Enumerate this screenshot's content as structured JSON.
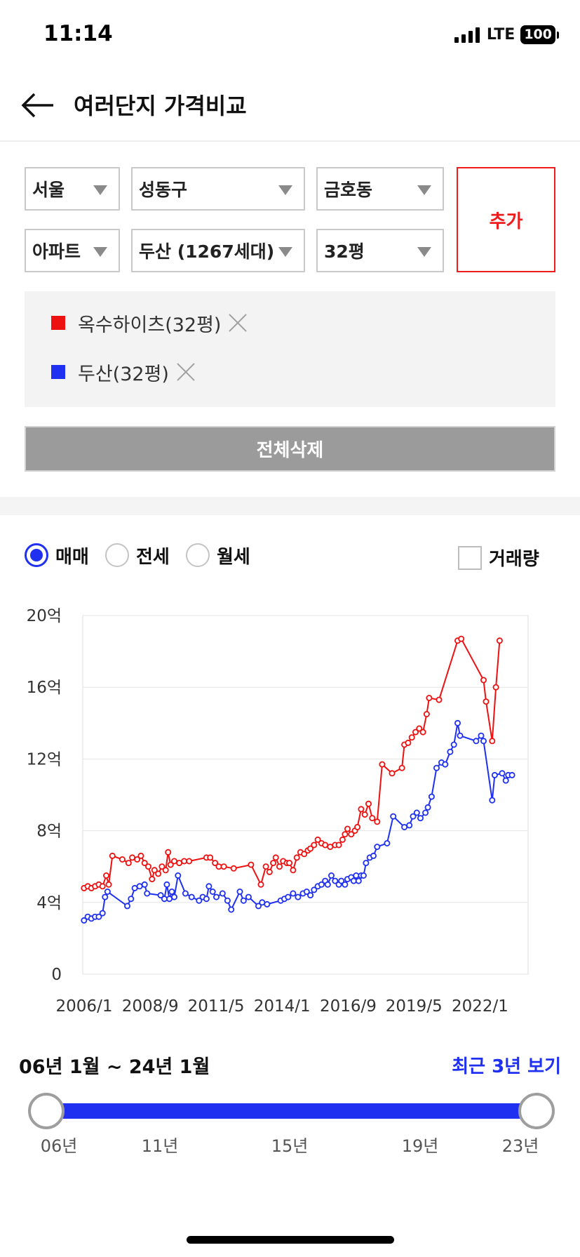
{
  "status_bar": {
    "time": "11:14",
    "network": "LTE",
    "battery": "100"
  },
  "header": {
    "title": "여러단지 가격비교",
    "back_icon": "arrow-left-icon"
  },
  "filters": {
    "city": "서울",
    "district": "성동구",
    "dong": "금호동",
    "property_type": "아파트",
    "complex": "두산 (1267세대)",
    "size": "32평",
    "add_label": "추가"
  },
  "selected": [
    {
      "label": "옥수하이츠(32평)",
      "color": "#ee1111"
    },
    {
      "label": "두산(32평)",
      "color": "#1f30f0"
    }
  ],
  "clear_all_label": "전체삭제",
  "trade_types": [
    {
      "label": "매매",
      "selected": true
    },
    {
      "label": "전세",
      "selected": false
    },
    {
      "label": "월세",
      "selected": false
    }
  ],
  "volume": {
    "label": "거래량",
    "checked": false
  },
  "chart_data": {
    "type": "line",
    "title": "",
    "xlabel": "",
    "ylabel": "",
    "ylim": [
      0,
      20
    ],
    "yticks": [
      0,
      4,
      8,
      12,
      16,
      20
    ],
    "ytick_labels": [
      "0",
      "4억",
      "8억",
      "12억",
      "16억",
      "20억"
    ],
    "xlim": [
      2006.0,
      2024.0
    ],
    "xticks": [
      2006.0,
      2008.67,
      2011.33,
      2014.0,
      2016.67,
      2019.33,
      2022.0
    ],
    "xtick_labels": [
      "2006/1",
      "2008/9",
      "2011/5",
      "2014/1",
      "2016/9",
      "2019/5",
      "2022/1"
    ],
    "grid": true,
    "series": [
      {
        "name": "옥수하이츠(32평)",
        "color": "#ee1111",
        "points": [
          [
            2006.05,
            4.8
          ],
          [
            2006.2,
            4.9
          ],
          [
            2006.35,
            4.8
          ],
          [
            2006.5,
            4.9
          ],
          [
            2006.65,
            5.0
          ],
          [
            2006.8,
            4.9
          ],
          [
            2006.95,
            5.5
          ],
          [
            2007.05,
            5.0
          ],
          [
            2007.2,
            6.6
          ],
          [
            2007.6,
            6.4
          ],
          [
            2007.85,
            6.2
          ],
          [
            2008.0,
            6.5
          ],
          [
            2008.2,
            6.4
          ],
          [
            2008.35,
            6.6
          ],
          [
            2008.5,
            6.2
          ],
          [
            2008.65,
            6.0
          ],
          [
            2008.8,
            5.3
          ],
          [
            2008.9,
            5.8
          ],
          [
            2009.05,
            5.6
          ],
          [
            2009.2,
            6.0
          ],
          [
            2009.35,
            5.8
          ],
          [
            2009.45,
            6.8
          ],
          [
            2009.55,
            6.1
          ],
          [
            2009.7,
            6.3
          ],
          [
            2009.9,
            6.2
          ],
          [
            2010.1,
            6.3
          ],
          [
            2010.3,
            6.3
          ],
          [
            2011.0,
            6.5
          ],
          [
            2011.15,
            6.5
          ],
          [
            2011.35,
            6.2
          ],
          [
            2011.5,
            6.0
          ],
          [
            2011.7,
            6.0
          ],
          [
            2012.1,
            5.9
          ],
          [
            2012.8,
            6.1
          ],
          [
            2013.2,
            5.0
          ],
          [
            2013.4,
            6.0
          ],
          [
            2013.55,
            5.7
          ],
          [
            2013.7,
            6.2
          ],
          [
            2013.8,
            6.5
          ],
          [
            2013.95,
            6.0
          ],
          [
            2014.1,
            6.3
          ],
          [
            2014.25,
            6.2
          ],
          [
            2014.35,
            6.2
          ],
          [
            2014.5,
            5.8
          ],
          [
            2014.65,
            6.5
          ],
          [
            2014.8,
            6.8
          ],
          [
            2014.95,
            6.7
          ],
          [
            2015.1,
            6.9
          ],
          [
            2015.2,
            7.0
          ],
          [
            2015.35,
            7.2
          ],
          [
            2015.5,
            7.5
          ],
          [
            2015.65,
            7.3
          ],
          [
            2015.8,
            7.2
          ],
          [
            2016.0,
            7.1
          ],
          [
            2016.2,
            7.2
          ],
          [
            2016.35,
            7.2
          ],
          [
            2016.5,
            7.5
          ],
          [
            2016.6,
            7.8
          ],
          [
            2016.7,
            8.1
          ],
          [
            2016.85,
            7.8
          ],
          [
            2017.0,
            8.0
          ],
          [
            2017.1,
            8.2
          ],
          [
            2017.25,
            9.2
          ],
          [
            2017.4,
            8.9
          ],
          [
            2017.55,
            9.5
          ],
          [
            2017.7,
            8.7
          ],
          [
            2017.9,
            8.5
          ],
          [
            2018.1,
            11.7
          ],
          [
            2018.5,
            11.2
          ],
          [
            2018.9,
            11.5
          ],
          [
            2019.0,
            12.8
          ],
          [
            2019.15,
            12.9
          ],
          [
            2019.3,
            13.2
          ],
          [
            2019.45,
            13.5
          ],
          [
            2019.6,
            13.7
          ],
          [
            2019.75,
            13.5
          ],
          [
            2019.9,
            14.5
          ],
          [
            2020.0,
            15.4
          ],
          [
            2020.4,
            15.3
          ],
          [
            2021.15,
            18.6
          ],
          [
            2021.3,
            18.7
          ],
          [
            2022.2,
            16.4
          ],
          [
            2022.3,
            15.2
          ],
          [
            2022.55,
            13.0
          ],
          [
            2022.7,
            16.0
          ],
          [
            2022.85,
            18.6
          ]
        ]
      },
      {
        "name": "두산(32평)",
        "color": "#1f30f0",
        "points": [
          [
            2006.05,
            3.0
          ],
          [
            2006.2,
            3.2
          ],
          [
            2006.35,
            3.1
          ],
          [
            2006.5,
            3.2
          ],
          [
            2006.65,
            3.2
          ],
          [
            2006.8,
            3.4
          ],
          [
            2006.9,
            4.3
          ],
          [
            2007.0,
            4.6
          ],
          [
            2007.8,
            3.8
          ],
          [
            2007.95,
            4.2
          ],
          [
            2008.1,
            4.8
          ],
          [
            2008.3,
            4.9
          ],
          [
            2008.5,
            5.0
          ],
          [
            2008.6,
            4.5
          ],
          [
            2009.15,
            4.4
          ],
          [
            2009.3,
            4.2
          ],
          [
            2009.4,
            5.0
          ],
          [
            2009.5,
            4.2
          ],
          [
            2009.6,
            4.6
          ],
          [
            2009.7,
            4.3
          ],
          [
            2009.85,
            5.5
          ],
          [
            2010.15,
            4.5
          ],
          [
            2010.4,
            4.3
          ],
          [
            2010.7,
            4.1
          ],
          [
            2010.85,
            4.3
          ],
          [
            2011.0,
            4.2
          ],
          [
            2011.1,
            4.9
          ],
          [
            2011.25,
            4.6
          ],
          [
            2011.4,
            4.3
          ],
          [
            2011.65,
            4.5
          ],
          [
            2011.85,
            4.1
          ],
          [
            2012.0,
            3.6
          ],
          [
            2012.35,
            4.6
          ],
          [
            2012.5,
            4.1
          ],
          [
            2012.7,
            4.3
          ],
          [
            2013.1,
            3.8
          ],
          [
            2013.25,
            4.0
          ],
          [
            2013.45,
            3.9
          ],
          [
            2014.0,
            4.1
          ],
          [
            2014.15,
            4.2
          ],
          [
            2014.3,
            4.3
          ],
          [
            2014.5,
            4.5
          ],
          [
            2014.7,
            4.3
          ],
          [
            2014.9,
            4.5
          ],
          [
            2015.05,
            4.6
          ],
          [
            2015.2,
            4.4
          ],
          [
            2015.35,
            4.7
          ],
          [
            2015.5,
            4.9
          ],
          [
            2015.65,
            5.0
          ],
          [
            2015.8,
            5.2
          ],
          [
            2015.9,
            5.0
          ],
          [
            2016.05,
            5.5
          ],
          [
            2016.2,
            5.2
          ],
          [
            2016.35,
            5.0
          ],
          [
            2016.45,
            5.2
          ],
          [
            2016.6,
            5.0
          ],
          [
            2016.7,
            5.3
          ],
          [
            2016.85,
            5.4
          ],
          [
            2016.95,
            5.2
          ],
          [
            2017.05,
            5.5
          ],
          [
            2017.15,
            5.2
          ],
          [
            2017.25,
            5.5
          ],
          [
            2017.35,
            5.5
          ],
          [
            2017.45,
            6.2
          ],
          [
            2017.6,
            6.5
          ],
          [
            2017.75,
            6.6
          ],
          [
            2017.9,
            7.1
          ],
          [
            2018.3,
            7.3
          ],
          [
            2018.55,
            8.8
          ],
          [
            2019.0,
            8.2
          ],
          [
            2019.2,
            8.3
          ],
          [
            2019.35,
            8.8
          ],
          [
            2019.5,
            9.0
          ],
          [
            2019.65,
            8.7
          ],
          [
            2019.85,
            9.0
          ],
          [
            2019.95,
            9.3
          ],
          [
            2020.1,
            9.9
          ],
          [
            2020.3,
            11.5
          ],
          [
            2020.5,
            11.8
          ],
          [
            2020.65,
            11.7
          ],
          [
            2020.85,
            12.4
          ],
          [
            2021.0,
            12.8
          ],
          [
            2021.15,
            14.0
          ],
          [
            2021.25,
            13.3
          ],
          [
            2021.9,
            13.0
          ],
          [
            2022.1,
            13.3
          ],
          [
            2022.2,
            13.0
          ],
          [
            2022.55,
            9.7
          ],
          [
            2022.65,
            11.1
          ],
          [
            2022.95,
            11.2
          ],
          [
            2023.1,
            10.8
          ],
          [
            2023.2,
            11.1
          ],
          [
            2023.35,
            11.1
          ]
        ]
      }
    ]
  },
  "range": {
    "title": "06년 1월 ~ 24년 1월",
    "recent_label": "최근 3년 보기",
    "ticks": [
      "06년",
      "11년",
      "15년",
      "19년",
      "23년"
    ]
  }
}
